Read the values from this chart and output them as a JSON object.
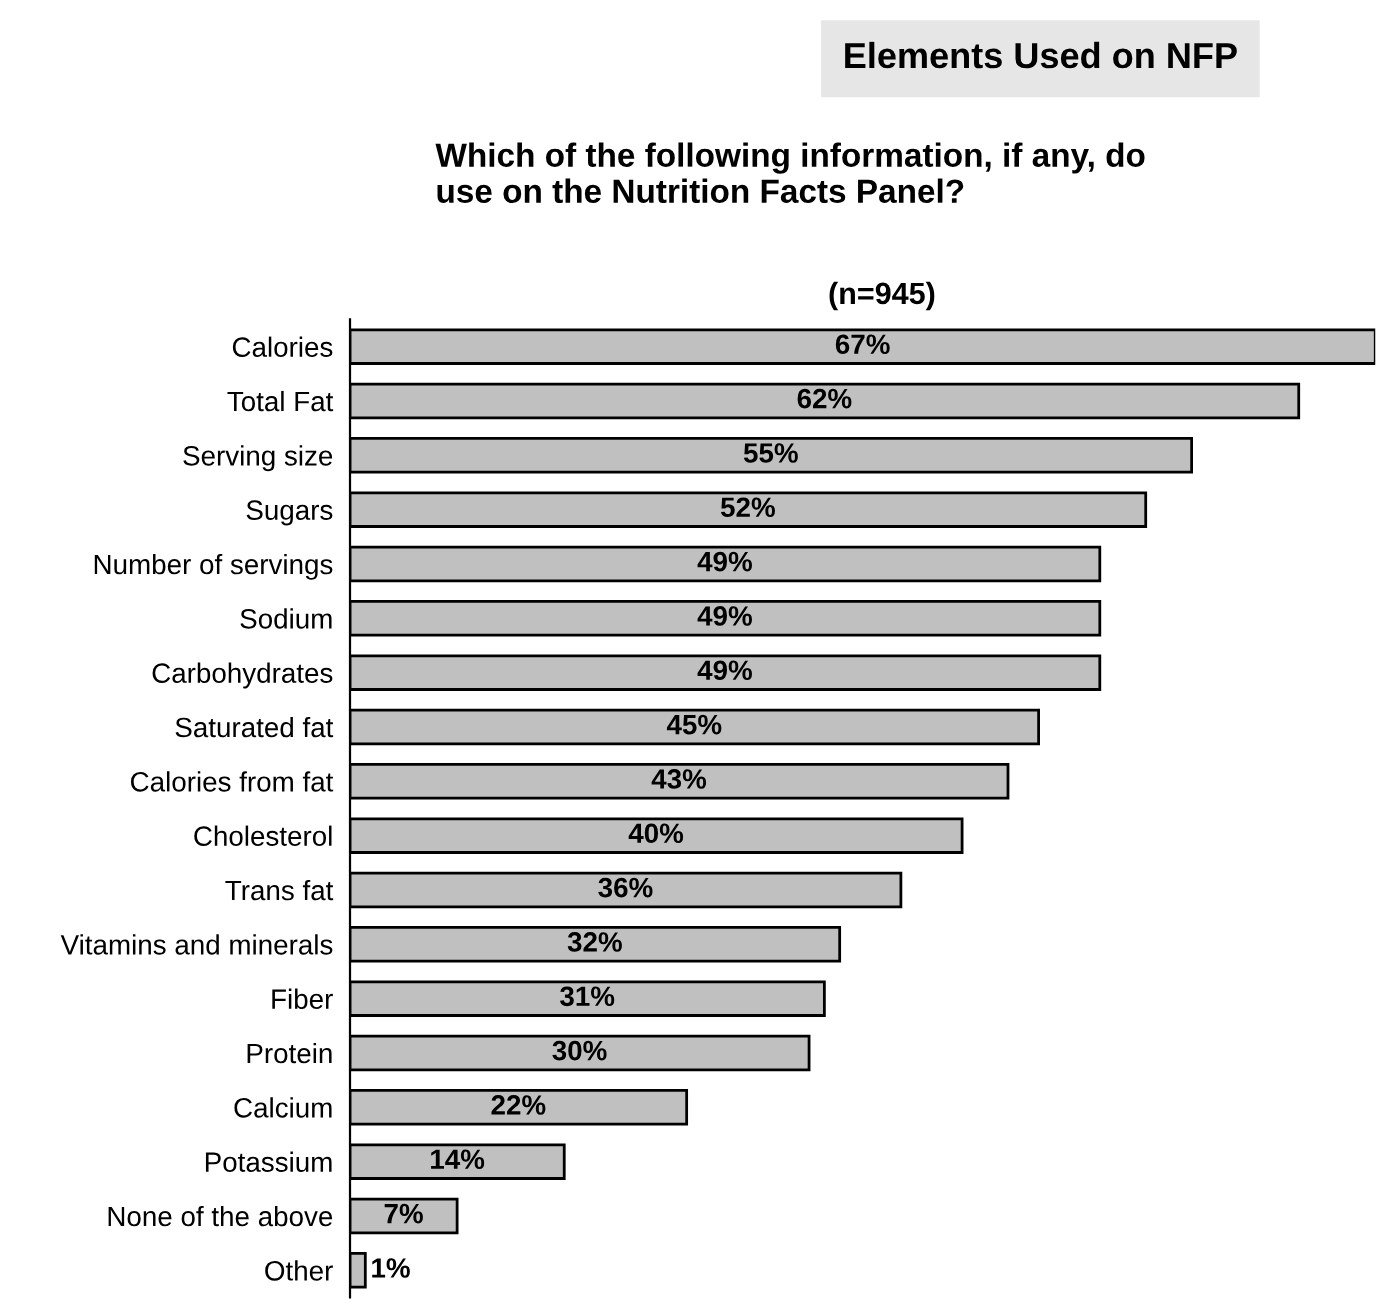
{
  "chart_data": {
    "type": "bar",
    "orientation": "horizontal",
    "title": "Elements Used on NFP",
    "subtitle": "Which of the following information, if any, do\nuse on the Nutrition Facts Panel?",
    "annotations": [
      "(n=945)"
    ],
    "categories": [
      "Calories",
      "Total Fat",
      "Serving size",
      "Sugars",
      "Number of servings",
      "Sodium",
      "Carbohydrates",
      "Saturated fat",
      "Calories from fat",
      "Cholesterol",
      "Trans fat",
      "Vitamins and minerals",
      "Fiber",
      "Protein",
      "Calcium",
      "Potassium",
      "None of the above",
      "Other"
    ],
    "values": [
      67,
      62,
      55,
      52,
      49,
      49,
      49,
      45,
      43,
      40,
      36,
      32,
      31,
      30,
      22,
      14,
      7,
      1
    ],
    "value_labels": [
      "67%",
      "62%",
      "55%",
      "52%",
      "49%",
      "49%",
      "49%",
      "45%",
      "43%",
      "40%",
      "36%",
      "32%",
      "31%",
      "30%",
      "22%",
      "14%",
      "7%",
      "1%"
    ],
    "color": "#c0c0c0",
    "grid": false,
    "legend": false
  }
}
